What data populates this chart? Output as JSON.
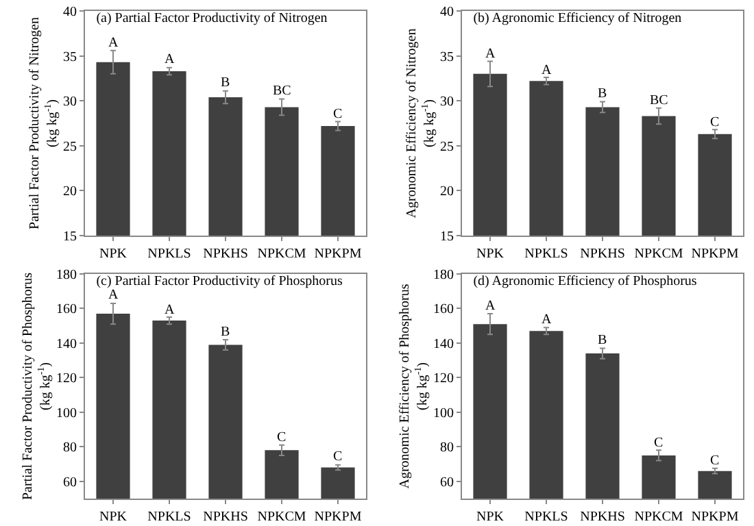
{
  "chart_data": [
    {
      "type": "bar",
      "title": "(a) Partial Factor Productivity of Nitrogen",
      "ylabel": "Partial Factor Productivity of Nitrogen\n(kg kg$^{-1}$)",
      "categories": [
        "NPK",
        "NPKLS",
        "NPKHS",
        "NPKCM",
        "NPKPM"
      ],
      "values": [
        34.3,
        33.3,
        30.4,
        29.3,
        27.2
      ],
      "errors": [
        1.3,
        0.4,
        0.7,
        0.9,
        0.5
      ],
      "value_labels": [
        "A",
        "A",
        "B",
        "BC",
        "C"
      ],
      "color": "#404040",
      "ylim": [
        15,
        40
      ],
      "yticks": [
        15,
        20,
        25,
        30,
        35,
        40
      ]
    },
    {
      "type": "bar",
      "title": "(b) Agronomic Efficiency of Nitrogen",
      "ylabel": "Agronomic Efficiency of Nitrogen\n(kg kg$^{-1}$)",
      "categories": [
        "NPK",
        "NPKLS",
        "NPKHS",
        "NPKCM",
        "NPKPM"
      ],
      "values": [
        33.0,
        32.2,
        29.3,
        28.3,
        26.3
      ],
      "errors": [
        1.4,
        0.4,
        0.6,
        0.9,
        0.5
      ],
      "value_labels": [
        "A",
        "A",
        "B",
        "BC",
        "C"
      ],
      "color": "#404040",
      "ylim": [
        15,
        40
      ],
      "yticks": [
        15,
        20,
        25,
        30,
        35,
        40
      ]
    },
    {
      "type": "bar",
      "title": "(c) Partial Factor Productivity of Phosphorus",
      "ylabel": "Partial Factor Productivity of Phosphorus\n(kg kg$^{-1}$)",
      "categories": [
        "NPK",
        "NPKLS",
        "NPKHS",
        "NPKCM",
        "NPKPM"
      ],
      "values": [
        157,
        153,
        139,
        78,
        68
      ],
      "errors": [
        6,
        2,
        3,
        3,
        1.5
      ],
      "value_labels": [
        "A",
        "A",
        "B",
        "C",
        "C"
      ],
      "color": "#404040",
      "ylim": [
        50,
        180
      ],
      "yticks": [
        60,
        80,
        100,
        120,
        140,
        160,
        180
      ]
    },
    {
      "type": "bar",
      "title": "(d) Agronomic Efficiency of Phosphorus",
      "ylabel": "Agronomic Efficiency of Phosphorus\n(kg kg$^{-1}$)",
      "categories": [
        "NPK",
        "NPKLS",
        "NPKHS",
        "NPKCM",
        "NPKPM"
      ],
      "values": [
        151,
        147,
        134,
        75,
        66
      ],
      "errors": [
        6,
        2,
        3,
        3,
        1.5
      ],
      "value_labels": [
        "A",
        "A",
        "B",
        "C",
        "C"
      ],
      "color": "#404040",
      "ylim": [
        50,
        180
      ],
      "yticks": [
        60,
        80,
        100,
        120,
        140,
        160,
        180
      ]
    }
  ]
}
